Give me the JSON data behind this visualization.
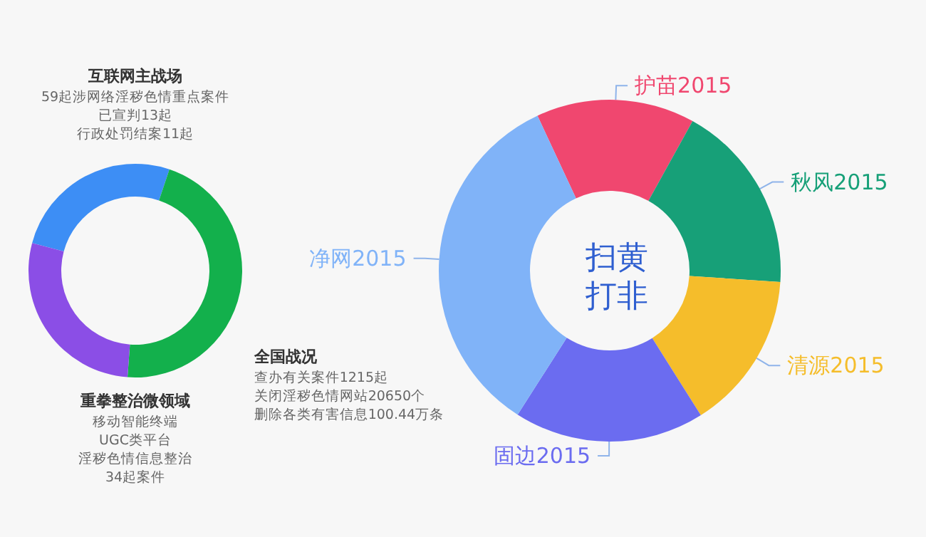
{
  "chart_data": [
    {
      "type": "donut",
      "categories": [
        "互联网主战场",
        "全国战况",
        "重拳整治微领域"
      ],
      "values": [
        26,
        46,
        28
      ],
      "colors": [
        "#3d8ef5",
        "#13b04c",
        "#8b4ee6"
      ],
      "annotations": [
        [
          "59起涉网络淫秽色情重点案件",
          "已宣判13起",
          "行政处罚结案11起"
        ],
        [
          "查办有关案件1215起",
          "关闭淫秽色情网站20650个",
          "删除各类有害信息100.44万条"
        ],
        [
          "移动智能终端",
          "UGC类平台",
          "淫秽色情信息整治",
          "34起案件"
        ]
      ]
    },
    {
      "type": "donut",
      "title": "扫黄打非",
      "categories": [
        "护苗2015",
        "秋风2015",
        "清源2015",
        "固边2015",
        "净网2015"
      ],
      "values": [
        15,
        18,
        15,
        18,
        34
      ],
      "colors": [
        "#f0476f",
        "#17a078",
        "#f5bd2b",
        "#6b6cf0",
        "#80b3f8"
      ]
    }
  ]
}
